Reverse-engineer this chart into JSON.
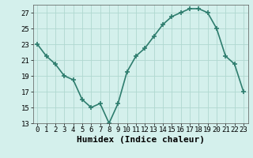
{
  "x": [
    0,
    1,
    2,
    3,
    4,
    5,
    6,
    7,
    8,
    9,
    10,
    11,
    12,
    13,
    14,
    15,
    16,
    17,
    18,
    19,
    20,
    21,
    22,
    23
  ],
  "y": [
    23.0,
    21.5,
    20.5,
    19.0,
    18.5,
    16.0,
    15.0,
    15.5,
    13.0,
    15.5,
    19.5,
    21.5,
    22.5,
    24.0,
    25.5,
    26.5,
    27.0,
    27.5,
    27.5,
    27.0,
    25.0,
    21.5,
    20.5,
    17.0
  ],
  "xlabel": "Humidex (Indice chaleur)",
  "ylim": [
    13,
    28
  ],
  "xlim": [
    -0.5,
    23.5
  ],
  "yticks": [
    13,
    15,
    17,
    19,
    21,
    23,
    25,
    27
  ],
  "xticks": [
    0,
    1,
    2,
    3,
    4,
    5,
    6,
    7,
    8,
    9,
    10,
    11,
    12,
    13,
    14,
    15,
    16,
    17,
    18,
    19,
    20,
    21,
    22,
    23
  ],
  "line_color": "#2e7d6e",
  "marker": "+",
  "marker_size": 4,
  "bg_color": "#d4f0ec",
  "grid_color": "#b0d8d0",
  "tick_label_fontsize": 6.5,
  "xlabel_fontsize": 8,
  "line_width": 1.2
}
